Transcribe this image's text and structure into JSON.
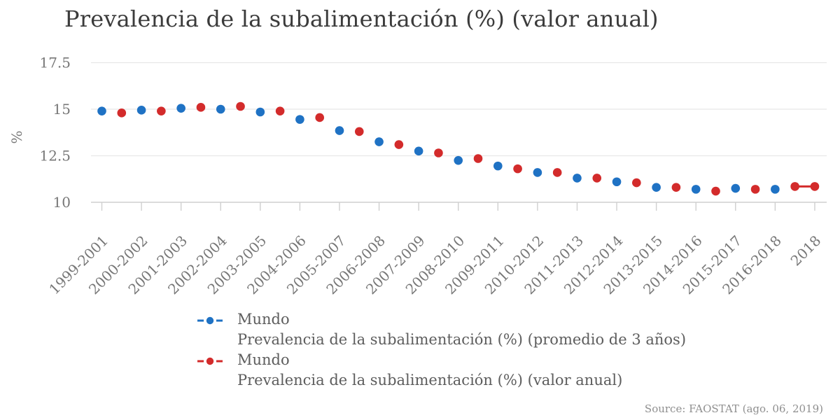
{
  "title": "Prevalencia de la subalimentación (%) (valor anual)",
  "source_note": "Source: FAOSTAT (ago. 06, 2019)",
  "colors": {
    "grid": "#e8e8e8",
    "axis": "#cfcfcf",
    "title_text": "#3b3b3b",
    "tick_text": "#777777",
    "legend_text": "#5d5d5d",
    "source_text": "#8f8f8f",
    "series_blue": "#1f72c4",
    "series_red": "#d32b2b"
  },
  "chart_data": {
    "type": "scatter",
    "title": "Prevalencia de la subalimentación (%) (valor anual)",
    "xlabel": "",
    "ylabel": "%",
    "grid": "horizontal-only",
    "legend_position": "bottom",
    "ylim": [
      10,
      17.5
    ],
    "yticks": [
      {
        "value": 10,
        "label": "10"
      },
      {
        "value": 12.5,
        "label": "12.5"
      },
      {
        "value": 15,
        "label": "15"
      },
      {
        "value": 17.5,
        "label": "17.5"
      }
    ],
    "categories": [
      "1999-2001",
      "2000-2002",
      "2001-2003",
      "2002-2004",
      "2003-2005",
      "2004-2006",
      "2005-2007",
      "2006-2008",
      "2007-2009",
      "2008-2010",
      "2009-2011",
      "2010-2012",
      "2011-2013",
      "2012-2014",
      "2013-2015",
      "2014-2016",
      "2015-2017",
      "2016-2018",
      "2018"
    ],
    "series": [
      {
        "name": "Mundo",
        "label": "Prevalencia de la subalimentación (%) (promedio de 3 años)",
        "color": "#1f72c4",
        "marker": "dash-dot-dash",
        "x_indices": [
          0,
          1,
          2,
          3,
          4,
          5,
          6,
          7,
          8,
          9,
          10,
          11,
          12,
          13,
          14,
          15,
          16,
          17
        ],
        "periods": [
          "1999-2001",
          "2000-2002",
          "2001-2003",
          "2002-2004",
          "2003-2005",
          "2004-2006",
          "2005-2007",
          "2006-2008",
          "2007-2009",
          "2008-2010",
          "2009-2011",
          "2010-2012",
          "2011-2013",
          "2012-2014",
          "2013-2015",
          "2014-2016",
          "2015-2017",
          "2016-2018"
        ],
        "values": [
          14.9,
          14.95,
          15.05,
          15.0,
          14.85,
          14.45,
          13.85,
          13.25,
          12.75,
          12.25,
          11.95,
          11.6,
          11.3,
          11.1,
          10.8,
          10.7,
          10.75,
          10.7
        ]
      },
      {
        "name": "Mundo",
        "label": "Prevalencia de la subalimentación (%) (valor anual)",
        "color": "#d32b2b",
        "marker": "dash-dot-dash",
        "connect_last_two": true,
        "x_indices": [
          0.5,
          1.5,
          2.5,
          3.5,
          4.5,
          5.5,
          6.5,
          7.5,
          8.5,
          9.5,
          10.5,
          11.5,
          12.5,
          13.5,
          14.5,
          15.5,
          16.5,
          17.5,
          18
        ],
        "years": [
          2000,
          2001,
          2002,
          2003,
          2004,
          2005,
          2006,
          2007,
          2008,
          2009,
          2010,
          2011,
          2012,
          2013,
          2014,
          2015,
          2016,
          2017,
          2018
        ],
        "values": [
          14.8,
          14.9,
          15.1,
          15.15,
          14.9,
          14.55,
          13.8,
          13.1,
          12.65,
          12.35,
          11.8,
          11.6,
          11.3,
          11.05,
          10.8,
          10.6,
          10.7,
          10.85,
          10.85
        ]
      }
    ]
  }
}
